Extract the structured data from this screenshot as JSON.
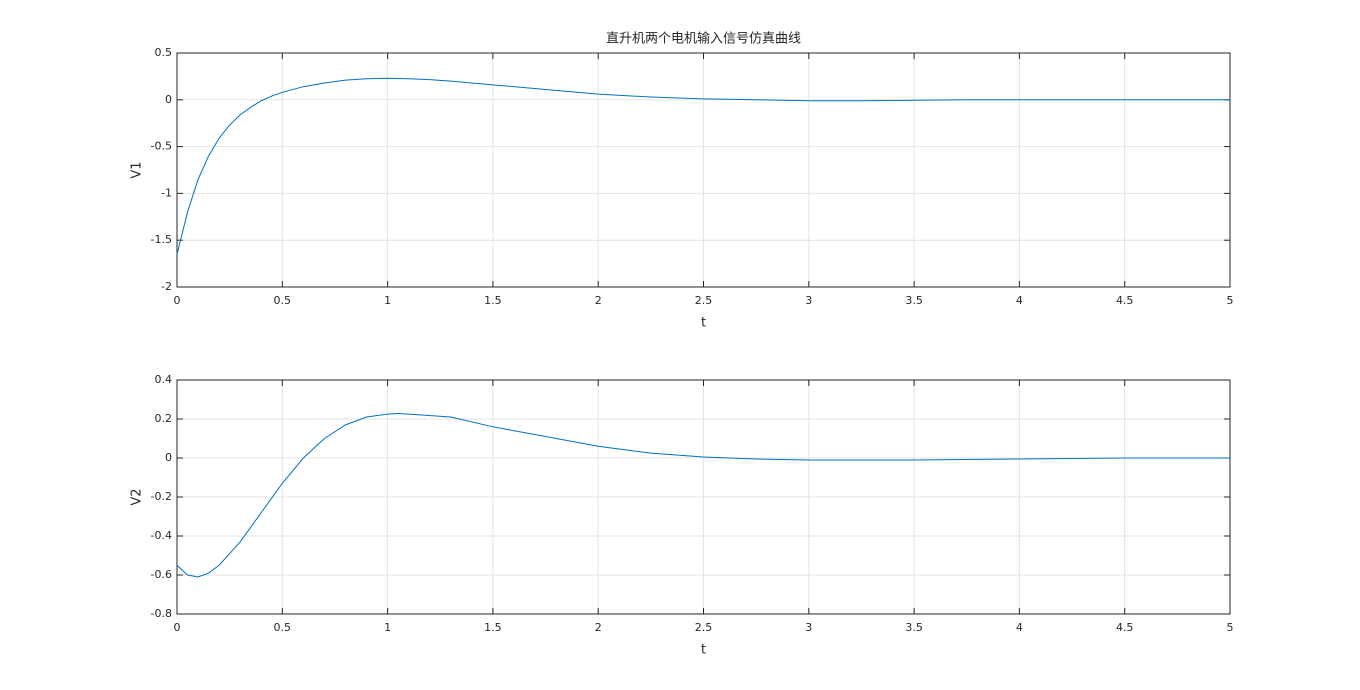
{
  "chart_data": [
    {
      "type": "line",
      "title": "直升机两个电机输入信号仿真曲线",
      "xlabel": "t",
      "ylabel": "V1",
      "x": [
        0,
        0.05,
        0.1,
        0.15,
        0.2,
        0.25,
        0.3,
        0.35,
        0.4,
        0.45,
        0.5,
        0.6,
        0.7,
        0.8,
        0.9,
        1.0,
        1.1,
        1.2,
        1.3,
        1.4,
        1.5,
        1.75,
        2,
        2.25,
        2.5,
        2.75,
        3,
        3.25,
        3.5,
        3.75,
        4,
        4.5,
        5
      ],
      "values": [
        -1.65,
        -1.2,
        -0.85,
        -0.6,
        -0.41,
        -0.27,
        -0.16,
        -0.08,
        -0.01,
        0.04,
        0.08,
        0.14,
        0.18,
        0.21,
        0.225,
        0.23,
        0.225,
        0.215,
        0.2,
        0.18,
        0.16,
        0.11,
        0.06,
        0.03,
        0.01,
        0,
        -0.01,
        -0.01,
        -0.005,
        0,
        0,
        0,
        0
      ],
      "color": "#0072bd",
      "xlim": [
        0,
        5
      ],
      "xticks": [
        0,
        0.5,
        1,
        1.5,
        2,
        2.5,
        3,
        3.5,
        4,
        4.5,
        5
      ],
      "ylim": [
        -2,
        0.5
      ],
      "yticks": [
        -2,
        -1.5,
        -1,
        -0.5,
        0,
        0.5
      ],
      "grid": true
    },
    {
      "type": "line",
      "xlabel": "t",
      "ylabel": "V2",
      "x": [
        0,
        0.05,
        0.1,
        0.15,
        0.2,
        0.3,
        0.4,
        0.5,
        0.6,
        0.7,
        0.8,
        0.9,
        1.0,
        1.05,
        1.1,
        1.3,
        1.5,
        1.75,
        2,
        2.25,
        2.5,
        2.75,
        3,
        3.5,
        4,
        4.5,
        5
      ],
      "values": [
        -0.55,
        -0.6,
        -0.61,
        -0.59,
        -0.55,
        -0.43,
        -0.28,
        -0.13,
        0,
        0.1,
        0.17,
        0.21,
        0.225,
        0.228,
        0.225,
        0.21,
        0.16,
        0.11,
        0.06,
        0.025,
        0.005,
        -0.005,
        -0.01,
        -0.01,
        -0.005,
        0,
        0
      ],
      "color": "#0072bd",
      "xlim": [
        0,
        5
      ],
      "xticks": [
        0,
        0.5,
        1,
        1.5,
        2,
        2.5,
        3,
        3.5,
        4,
        4.5,
        5
      ],
      "ylim": [
        -0.8,
        0.4
      ],
      "yticks": [
        -0.8,
        -0.6,
        -0.4,
        -0.2,
        0,
        0.2,
        0.4
      ],
      "grid": true
    }
  ]
}
